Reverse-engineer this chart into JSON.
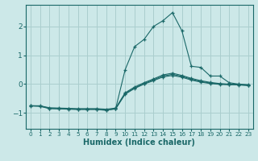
{
  "xlabel": "Humidex (Indice chaleur)",
  "ylabel": "",
  "bg_color": "#cce8e8",
  "grid_color": "#aacece",
  "line_color": "#1a6868",
  "xlim": [
    -0.5,
    23.5
  ],
  "ylim": [
    -1.55,
    2.75
  ],
  "yticks": [
    -1,
    0,
    1,
    2
  ],
  "xticks": [
    0,
    1,
    2,
    3,
    4,
    5,
    6,
    7,
    8,
    9,
    10,
    11,
    12,
    13,
    14,
    15,
    16,
    17,
    18,
    19,
    20,
    21,
    22,
    23
  ],
  "lines": [
    {
      "x": [
        0,
        1,
        2,
        3,
        4,
        5,
        6,
        7,
        8,
        9,
        10,
        11,
        12,
        13,
        14,
        15,
        16,
        17,
        18,
        19,
        20,
        21,
        22,
        23
      ],
      "y": [
        -0.75,
        -0.75,
        -0.82,
        -0.83,
        -0.84,
        -0.85,
        -0.85,
        -0.85,
        -0.87,
        -0.83,
        -0.3,
        -0.1,
        0.05,
        0.18,
        0.32,
        0.38,
        0.3,
        0.2,
        0.12,
        0.06,
        0.02,
        0.0,
        -0.01,
        -0.03
      ]
    },
    {
      "x": [
        0,
        1,
        2,
        3,
        4,
        5,
        6,
        7,
        8,
        9,
        10,
        11,
        12,
        13,
        14,
        15,
        16,
        17,
        18,
        19,
        20,
        21,
        22,
        23
      ],
      "y": [
        -0.75,
        -0.76,
        -0.84,
        -0.85,
        -0.86,
        -0.87,
        -0.87,
        -0.87,
        -0.9,
        -0.85,
        -0.33,
        -0.13,
        0.02,
        0.15,
        0.28,
        0.34,
        0.27,
        0.17,
        0.09,
        0.04,
        0.0,
        -0.01,
        -0.02,
        -0.04
      ]
    },
    {
      "x": [
        0,
        1,
        2,
        3,
        4,
        5,
        6,
        7,
        8,
        9,
        10,
        11,
        12,
        13,
        14,
        15,
        16,
        17,
        18,
        19,
        20,
        21,
        22,
        23
      ],
      "y": [
        -0.76,
        -0.77,
        -0.85,
        -0.86,
        -0.87,
        -0.88,
        -0.88,
        -0.88,
        -0.91,
        -0.86,
        -0.35,
        -0.15,
        0.0,
        0.12,
        0.25,
        0.3,
        0.24,
        0.14,
        0.07,
        0.02,
        -0.01,
        -0.02,
        -0.03,
        -0.05
      ]
    },
    {
      "x": [
        9,
        10,
        11,
        12,
        13,
        14,
        15,
        16,
        17,
        18,
        19,
        20,
        21,
        22,
        23
      ],
      "y": [
        -0.85,
        0.5,
        1.3,
        1.55,
        2.0,
        2.2,
        2.48,
        1.85,
        0.62,
        0.58,
        0.28,
        0.28,
        0.05,
        0.0,
        -0.02
      ]
    }
  ]
}
